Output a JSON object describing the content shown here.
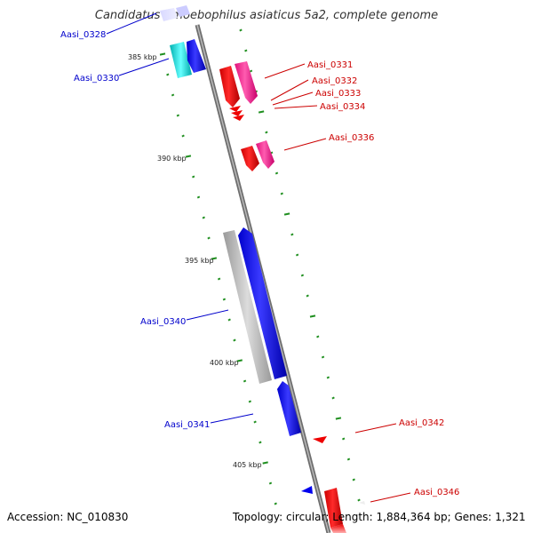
{
  "title": "Candidatus Amoebophilus asiaticus 5a2, complete genome",
  "footer": {
    "accession": "Accession: NC_010830",
    "summary": "Topology: circular; Length: 1,884,364 bp; Genes: 1,321"
  },
  "scale_labels": [
    "385 kbp",
    "390 kbp",
    "395 kbp",
    "400 kbp",
    "405 kbp"
  ],
  "gene_labels": {
    "left": [
      "Aasi_0328",
      "Aasi_0330",
      "Aasi_0340",
      "Aasi_0341"
    ],
    "right": [
      "Aasi_0331",
      "Aasi_0332",
      "Aasi_0333",
      "Aasi_0334",
      "Aasi_0336",
      "Aasi_0342",
      "Aasi_0346"
    ]
  },
  "colors": {
    "strand_minus": "#0000ee",
    "strand_plus": "#ee0000",
    "pseudo_pink": "#ee3399",
    "cyan": "#00e5e5",
    "grey": "#bbbbbb",
    "backbone": "#888888",
    "tick": "#1f8f1f"
  }
}
